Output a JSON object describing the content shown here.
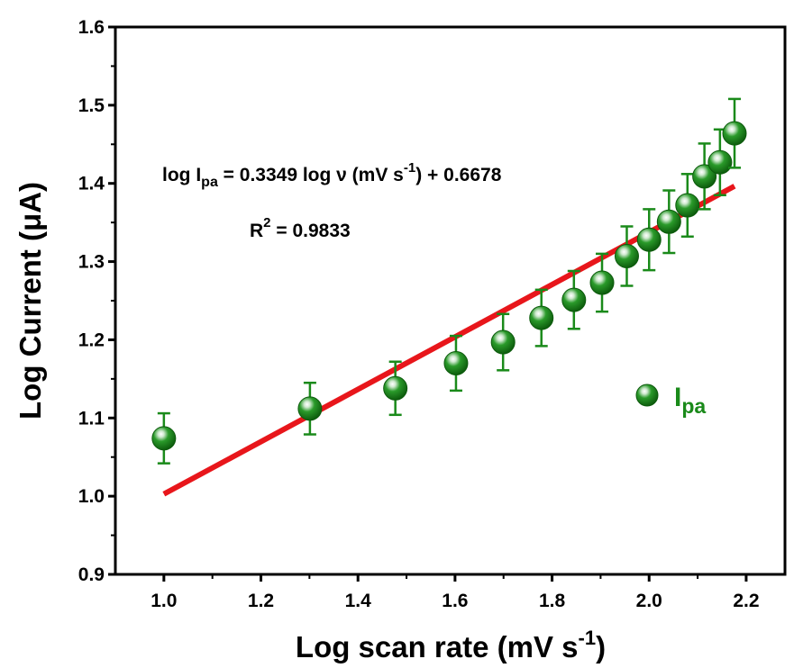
{
  "chart_data": {
    "type": "scatter",
    "xlabel": "Log scan rate (mV s",
    "xlabel_sup": "-1",
    "xlabel_close": ")",
    "ylabel": "Log Current (μA)",
    "xlim": [
      0.9,
      2.28
    ],
    "ylim": [
      0.9,
      1.6
    ],
    "x_ticks": [
      "1.0",
      "1.2",
      "1.4",
      "1.6",
      "1.8",
      "2.0",
      "2.2"
    ],
    "y_ticks": [
      "0.9",
      "1.0",
      "1.1",
      "1.2",
      "1.3",
      "1.4",
      "1.5",
      "1.6"
    ],
    "grid": false,
    "legend_position": "right",
    "marker_color": "#1a8a1a",
    "fit_color": "#e8161b",
    "series": [
      {
        "name": "I",
        "name_sub": "pa",
        "x": [
          1.0,
          1.301,
          1.477,
          1.602,
          1.699,
          1.778,
          1.845,
          1.903,
          1.954,
          2.0,
          2.041,
          2.079,
          2.114,
          2.146,
          2.176
        ],
        "y": [
          1.074,
          1.112,
          1.138,
          1.17,
          1.197,
          1.228,
          1.251,
          1.273,
          1.307,
          1.328,
          1.351,
          1.372,
          1.409,
          1.427,
          1.464
        ],
        "error": [
          0.032,
          0.033,
          0.034,
          0.035,
          0.036,
          0.036,
          0.037,
          0.037,
          0.038,
          0.039,
          0.04,
          0.04,
          0.042,
          0.042,
          0.044
        ]
      }
    ],
    "fit": {
      "slope": 0.3349,
      "intercept": 0.6678,
      "x_range": [
        1.0,
        2.176
      ]
    },
    "annotations": {
      "eq_part1": "log I",
      "eq_sub": "pa",
      "eq_part2": " = 0.3349 log ν (mV s",
      "eq_sup": "-1",
      "eq_part3": ") + 0.6678",
      "r2_base": "R",
      "r2_sup": "2",
      "r2_rest": " = 0.9833"
    }
  }
}
